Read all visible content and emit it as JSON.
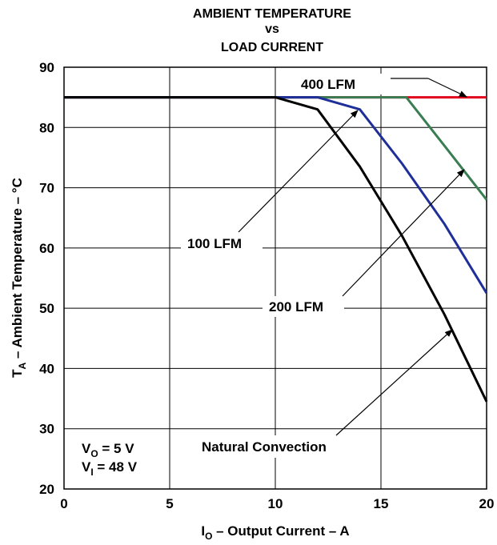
{
  "chart_data": {
    "type": "line",
    "title_lines": [
      "AMBIENT TEMPERATURE",
      "vs",
      "LOAD CURRENT"
    ],
    "xlabel": {
      "main": "I",
      "sub": "O",
      "rest": " – Output Current – A"
    },
    "ylabel": {
      "main": "T",
      "sub": "A",
      "rest": " – Ambient Temperature – °C"
    },
    "xlim": [
      0,
      20
    ],
    "ylim": [
      20,
      90
    ],
    "xticks": [
      0,
      5,
      10,
      15,
      20
    ],
    "yticks": [
      20,
      30,
      40,
      50,
      60,
      70,
      80,
      90
    ],
    "grid": true,
    "series": [
      {
        "name": "400 LFM",
        "color": "#e0001b",
        "points": [
          [
            0,
            85
          ],
          [
            16,
            85
          ],
          [
            20,
            85
          ]
        ]
      },
      {
        "name": "200 LFM",
        "color": "#3a7d52",
        "points": [
          [
            0,
            85
          ],
          [
            16.2,
            85
          ],
          [
            18,
            77
          ],
          [
            20,
            68
          ]
        ]
      },
      {
        "name": "100 LFM",
        "color": "#1f2f9a",
        "points": [
          [
            0,
            85
          ],
          [
            12,
            85
          ],
          [
            14,
            83
          ],
          [
            16,
            74
          ],
          [
            18,
            64
          ],
          [
            20,
            52.5
          ]
        ]
      },
      {
        "name": "Natural Convection",
        "color": "#000000",
        "points": [
          [
            0,
            85
          ],
          [
            10,
            85
          ],
          [
            12,
            83
          ],
          [
            14,
            73.5
          ],
          [
            16,
            62
          ],
          [
            18,
            49
          ],
          [
            20,
            34.5
          ]
        ]
      }
    ],
    "annotations": {
      "conditions": [
        {
          "main": "V",
          "sub": "O",
          "rest": " = 5 V"
        },
        {
          "main": "V",
          "sub": "I",
          "rest": " = 48 V"
        }
      ]
    }
  }
}
